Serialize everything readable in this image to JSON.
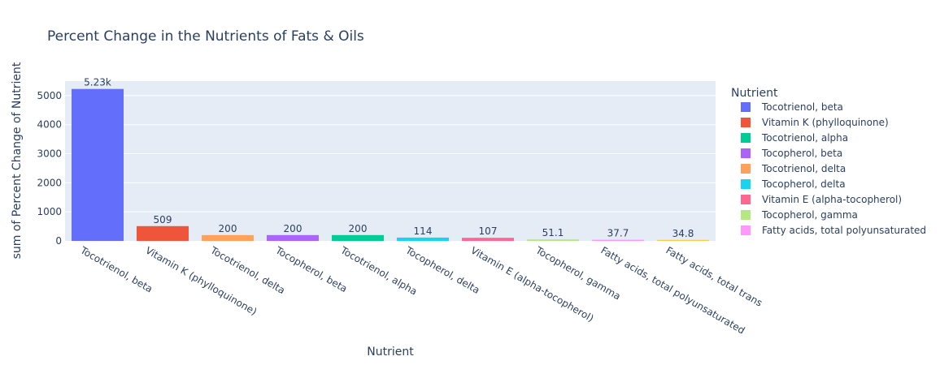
{
  "chart_data": {
    "type": "bar",
    "title": "Percent Change in the Nutrients of Fats & Oils",
    "xlabel": "Nutrient",
    "ylabel": "sum of Percent Change of Nutrient",
    "ylim": [
      0,
      5500
    ],
    "yticks": [
      0,
      1000,
      2000,
      3000,
      4000,
      5000
    ],
    "grid": true,
    "legend_title": "Nutrient",
    "legend_position": "right",
    "categories": [
      "Tocotrienol, beta",
      "Vitamin K (phylloquinone)",
      "Tocotrienol, delta",
      "Tocopherol, beta",
      "Tocotrienol, alpha",
      "Tocopherol, delta",
      "Vitamin E (alpha-tocopherol)",
      "Tocopherol, gamma",
      "Fatty acids, total polyunsaturated",
      "Fatty acids, total trans"
    ],
    "values": [
      5230,
      509,
      200,
      200,
      200,
      114,
      107,
      51.1,
      37.7,
      34.8
    ],
    "data_labels": [
      "5.23k",
      "509",
      "200",
      "200",
      "200",
      "114",
      "107",
      "51.1",
      "37.7",
      "34.8"
    ],
    "colors": [
      "#636efa",
      "#EF553B",
      "#FFA15A",
      "#ab63fa",
      "#00cc96",
      "#19d3f3",
      "#FF6692",
      "#B6E880",
      "#FF97FF",
      "#FECB52"
    ],
    "legend": [
      {
        "name": "Tocotrienol, beta",
        "color": "#636efa"
      },
      {
        "name": "Vitamin K (phylloquinone)",
        "color": "#EF553B"
      },
      {
        "name": "Tocotrienol, alpha",
        "color": "#00cc96"
      },
      {
        "name": "Tocopherol, beta",
        "color": "#ab63fa"
      },
      {
        "name": "Tocotrienol, delta",
        "color": "#FFA15A"
      },
      {
        "name": "Tocopherol, delta",
        "color": "#19d3f3"
      },
      {
        "name": "Vitamin E (alpha-tocopherol)",
        "color": "#FF6692"
      },
      {
        "name": "Tocopherol, gamma",
        "color": "#B6E880"
      },
      {
        "name": "Fatty acids, total polyunsaturated",
        "color": "#FF97FF"
      }
    ]
  }
}
